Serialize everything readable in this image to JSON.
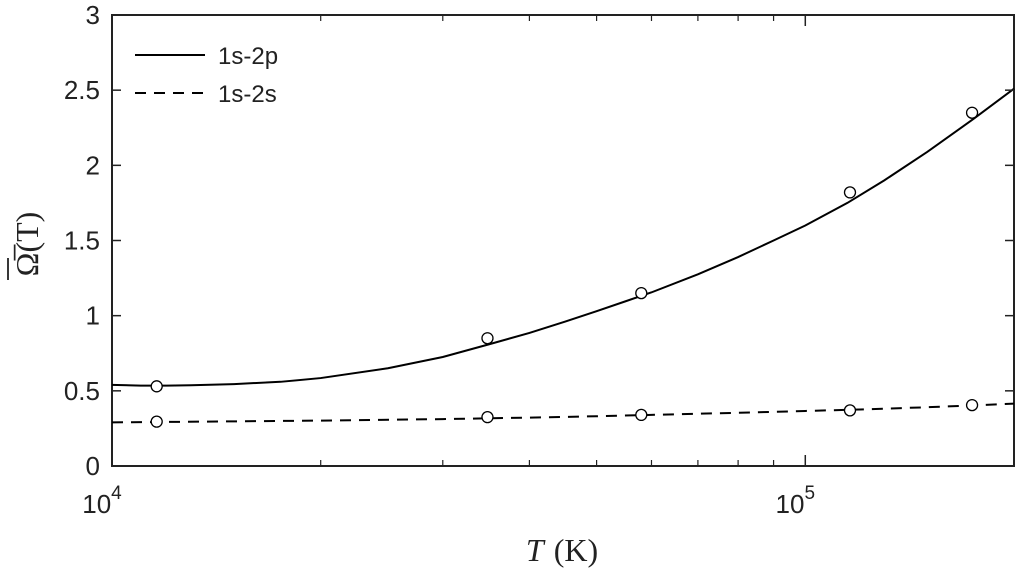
{
  "chart_data": {
    "type": "line",
    "title": "",
    "xlabel": {
      "var": "T",
      "unit": "(K)"
    },
    "ylabel": "Ω̅(T)",
    "xscale": "log",
    "xlim": [
      10000,
      200000
    ],
    "ylim": [
      0,
      3
    ],
    "xticks_major": [
      {
        "value": 10000,
        "base": "10",
        "exp": "4"
      },
      {
        "value": 100000,
        "base": "10",
        "exp": "5"
      }
    ],
    "yticks": [
      {
        "value": 0,
        "label": "0"
      },
      {
        "value": 0.5,
        "label": "0.5"
      },
      {
        "value": 1,
        "label": "1"
      },
      {
        "value": 1.5,
        "label": "1.5"
      },
      {
        "value": 2,
        "label": "2"
      },
      {
        "value": 2.5,
        "label": "2.5"
      },
      {
        "value": 3,
        "label": "3"
      }
    ],
    "legend_position": "top-left",
    "grid": false,
    "series": [
      {
        "name": "1s-2p",
        "style": "solid",
        "color": "#000000",
        "curve": {
          "x": [
            10000,
            11000,
            12000,
            13000,
            15000,
            17500,
            20000,
            25000,
            30000,
            35000,
            40000,
            45000,
            50000,
            55000,
            60000,
            70000,
            80000,
            90000,
            100000,
            115000,
            130000,
            150000,
            175000,
            200000
          ],
          "y": [
            0.54,
            0.535,
            0.535,
            0.537,
            0.545,
            0.56,
            0.585,
            0.65,
            0.725,
            0.81,
            0.885,
            0.96,
            1.03,
            1.095,
            1.155,
            1.275,
            1.39,
            1.5,
            1.6,
            1.75,
            1.9,
            2.09,
            2.31,
            2.51
          ]
        },
        "points": {
          "x": [
            11600,
            34800,
            58000,
            116000,
            174000
          ],
          "y": [
            0.53,
            0.85,
            1.15,
            1.82,
            2.35
          ]
        }
      },
      {
        "name": "1s-2s",
        "style": "dashed",
        "color": "#000000",
        "curve": {
          "x": [
            10000,
            12000,
            15000,
            20000,
            30000,
            40000,
            50000,
            60000,
            80000,
            100000,
            120000,
            150000,
            175000,
            200000
          ],
          "y": [
            0.29,
            0.293,
            0.297,
            0.302,
            0.312,
            0.322,
            0.331,
            0.34,
            0.354,
            0.366,
            0.376,
            0.391,
            0.403,
            0.415
          ]
        },
        "points": {
          "x": [
            11600,
            34800,
            58000,
            116000,
            174000
          ],
          "y": [
            0.295,
            0.325,
            0.34,
            0.37,
            0.405
          ]
        }
      }
    ]
  }
}
